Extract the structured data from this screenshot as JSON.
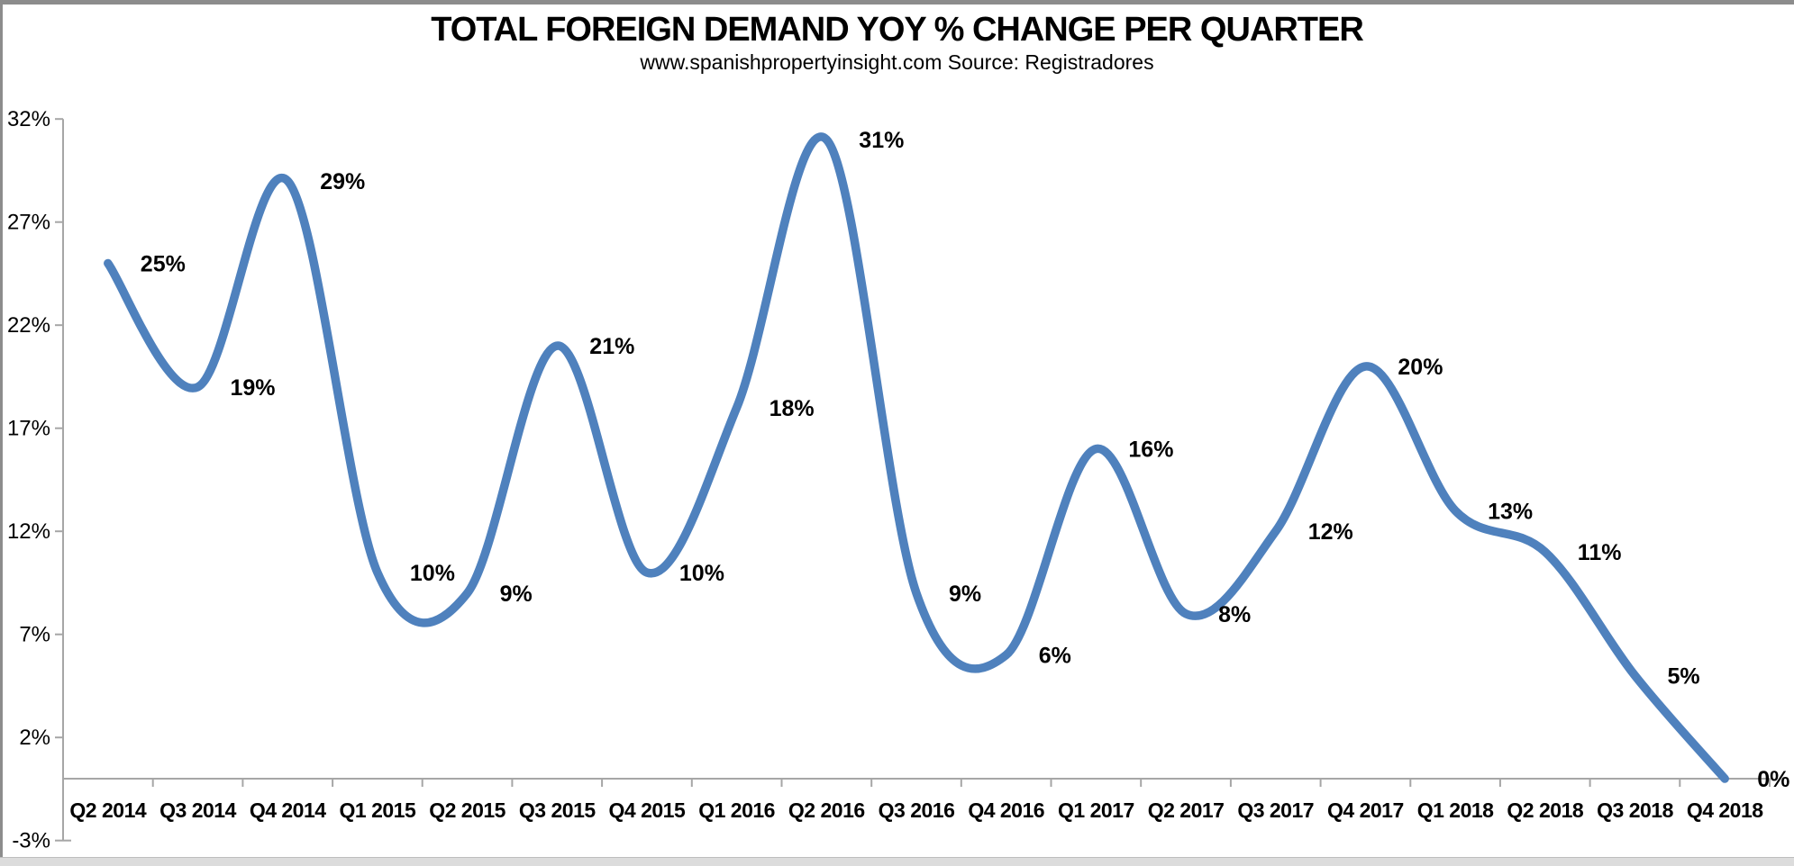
{
  "chart": {
    "title": "TOTAL FOREIGN DEMAND YOY % CHANGE PER QUARTER",
    "subtitle": "www.spanishpropertyinsight.com Source: Registradores"
  },
  "chart_data": {
    "type": "line",
    "smooth": true,
    "categories": [
      "Q2 2014",
      "Q3 2014",
      "Q4 2014",
      "Q1 2015",
      "Q2 2015",
      "Q3 2015",
      "Q4 2015",
      "Q1 2016",
      "Q2 2016",
      "Q3 2016",
      "Q4 2016",
      "Q1 2017",
      "Q2 2017",
      "Q3 2017",
      "Q4 2017",
      "Q1 2018",
      "Q2 2018",
      "Q3 2018",
      "Q4 2018"
    ],
    "values": [
      25,
      19,
      29,
      10,
      9,
      21,
      10,
      18,
      31,
      9,
      6,
      16,
      8,
      12,
      20,
      13,
      11,
      5,
      0
    ],
    "data_labels": [
      "25%",
      "19%",
      "29%",
      "10%",
      "9%",
      "21%",
      "10%",
      "18%",
      "31%",
      "9%",
      "6%",
      "16%",
      "8%",
      "12%",
      "20%",
      "13%",
      "11%",
      "5%",
      "0%"
    ],
    "data_label_position": "right",
    "y_ticks": [
      {
        "value": 32,
        "label": "32%"
      },
      {
        "value": 27,
        "label": "27%"
      },
      {
        "value": 22,
        "label": "22%"
      },
      {
        "value": 17,
        "label": "17%"
      },
      {
        "value": 12,
        "label": "12%"
      },
      {
        "value": 7,
        "label": "7%"
      },
      {
        "value": 2,
        "label": "2%"
      },
      {
        "value": -3,
        "label": "-3%"
      }
    ],
    "ylim": [
      -3,
      32
    ],
    "x_axis_crosses_at": 0,
    "grid": false,
    "legend": "none",
    "colors": {
      "line": "#4f81bd",
      "axis": "#a6a6a6",
      "text": "#000000",
      "frame_top": "#8c8c8c",
      "frame_left": "#8c8c8c",
      "frame_bottom": "#dcdcdc"
    }
  }
}
